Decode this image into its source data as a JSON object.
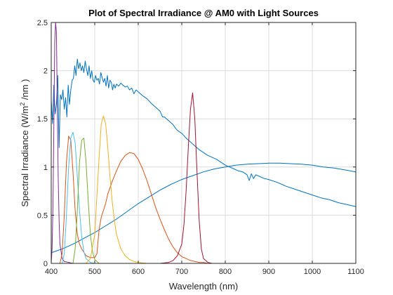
{
  "chart_data": {
    "type": "line",
    "title": "Plot of Spectral Irradiance @ AM0 with Light Sources",
    "xlabel": "Wavelength (nm)",
    "ylabel_main": "Spectral Irradiance (W/m",
    "ylabel_sup": "2",
    "ylabel_end": " /nm )",
    "xlim": [
      400,
      1100
    ],
    "ylim": [
      0,
      2.5
    ],
    "xticks": [
      400,
      500,
      600,
      700,
      800,
      900,
      1000,
      1100
    ],
    "yticks": [
      0,
      0.5,
      1,
      1.5,
      2,
      2.5
    ],
    "grid": true,
    "legend": "none",
    "series": [
      {
        "color": "#0072bd",
        "x": [
          400,
          403,
          406,
          409,
          412,
          415,
          418,
          421,
          424,
          427,
          430,
          433,
          436,
          439,
          442,
          445,
          448,
          451,
          454,
          457,
          460,
          463,
          466,
          469,
          472,
          475,
          478,
          481,
          484,
          487,
          490,
          493,
          496,
          499,
          502,
          505,
          508,
          511,
          514,
          517,
          520,
          523,
          526,
          529,
          532,
          535,
          538,
          541,
          544,
          547,
          550,
          555,
          560,
          565,
          570,
          575,
          580,
          585,
          590,
          595,
          600,
          610,
          620,
          630,
          640,
          650,
          656,
          660,
          670,
          680,
          686,
          690,
          700,
          710,
          720,
          730,
          740,
          750,
          760,
          770,
          780,
          790,
          800,
          810,
          820,
          830,
          840,
          850,
          855,
          860,
          865,
          870,
          880,
          890,
          900,
          920,
          940,
          960,
          980,
          1000,
          1020,
          1040,
          1060,
          1080,
          1100
        ],
        "y": [
          1.7,
          1.45,
          1.85,
          1.55,
          1.65,
          1.95,
          1.2,
          1.75,
          1.7,
          1.8,
          1.6,
          1.72,
          1.52,
          1.85,
          1.65,
          1.8,
          1.9,
          1.92,
          2.05,
          1.95,
          2.12,
          2.02,
          2.08,
          2.0,
          2.05,
          1.98,
          2.1,
          2.02,
          1.95,
          2.05,
          1.92,
          2.0,
          1.9,
          1.88,
          1.95,
          1.9,
          1.92,
          1.86,
          1.98,
          1.93,
          1.88,
          1.92,
          1.84,
          1.95,
          1.82,
          1.9,
          1.88,
          1.8,
          1.86,
          1.82,
          1.86,
          1.84,
          1.87,
          1.85,
          1.83,
          1.84,
          1.8,
          1.82,
          1.76,
          1.8,
          1.78,
          1.74,
          1.71,
          1.66,
          1.62,
          1.58,
          1.52,
          1.52,
          1.48,
          1.44,
          1.4,
          1.38,
          1.35,
          1.3,
          1.26,
          1.22,
          1.18,
          1.15,
          1.12,
          1.1,
          1.08,
          1.05,
          1.02,
          1.0,
          0.98,
          0.96,
          0.95,
          0.92,
          0.86,
          0.93,
          0.88,
          0.92,
          0.9,
          0.88,
          0.87,
          0.84,
          0.8,
          0.77,
          0.74,
          0.71,
          0.68,
          0.66,
          0.63,
          0.61,
          0.59
        ]
      },
      {
        "color": "#0072bd",
        "x": [
          400,
          425,
          450,
          475,
          500,
          525,
          550,
          575,
          600,
          625,
          650,
          675,
          700,
          725,
          750,
          775,
          800,
          825,
          850,
          875,
          900,
          925,
          950,
          975,
          1000,
          1025,
          1050,
          1075,
          1100
        ],
        "y": [
          0.11,
          0.15,
          0.2,
          0.26,
          0.32,
          0.39,
          0.46,
          0.54,
          0.62,
          0.69,
          0.76,
          0.82,
          0.87,
          0.91,
          0.95,
          0.98,
          1.0,
          1.02,
          1.03,
          1.035,
          1.04,
          1.04,
          1.035,
          1.03,
          1.02,
          1.0,
          0.99,
          0.97,
          0.95
        ]
      },
      {
        "color": "#7e2f8e",
        "x": [
          400,
          402,
          404,
          406,
          408,
          410,
          412,
          414,
          416,
          418,
          420,
          425,
          430,
          440,
          450
        ],
        "y": [
          0.0,
          0.15,
          0.6,
          1.4,
          2.3,
          2.6,
          2.4,
          1.6,
          0.9,
          0.45,
          0.2,
          0.05,
          0.02,
          0.01,
          0.0
        ]
      },
      {
        "color": "#d95319",
        "x": [
          420,
          425,
          430,
          435,
          440,
          445,
          450,
          455,
          460,
          465,
          470,
          480,
          490,
          500,
          505,
          510,
          515,
          520,
          525,
          530,
          540,
          550,
          560,
          570,
          580,
          590,
          600,
          610,
          620,
          630,
          640,
          650,
          660,
          670,
          680,
          690,
          700,
          710,
          720,
          730,
          740,
          750,
          760,
          770,
          780
        ],
        "y": [
          0.0,
          0.1,
          0.5,
          1.05,
          1.32,
          1.28,
          0.95,
          0.55,
          0.3,
          0.2,
          0.15,
          0.08,
          0.06,
          0.06,
          0.1,
          0.35,
          0.48,
          0.55,
          0.62,
          0.72,
          0.85,
          0.96,
          1.06,
          1.12,
          1.15,
          1.14,
          1.08,
          0.98,
          0.86,
          0.72,
          0.58,
          0.46,
          0.35,
          0.25,
          0.17,
          0.11,
          0.07,
          0.05,
          0.03,
          0.02,
          0.01,
          0.01,
          0.0,
          0.0,
          0.0
        ]
      },
      {
        "color": "#4dbeee",
        "x": [
          425,
          430,
          435,
          440,
          445,
          450,
          455,
          460,
          465,
          470,
          475,
          480,
          490,
          500
        ],
        "y": [
          0.0,
          0.1,
          0.5,
          1.0,
          1.3,
          1.36,
          1.25,
          0.9,
          0.55,
          0.28,
          0.12,
          0.05,
          0.01,
          0.0
        ]
      },
      {
        "color": "#77ac30",
        "x": [
          450,
          455,
          460,
          465,
          470,
          475,
          480,
          485,
          490,
          495,
          500,
          510
        ],
        "y": [
          0.0,
          0.15,
          0.55,
          1.05,
          1.28,
          1.3,
          1.05,
          0.65,
          0.3,
          0.12,
          0.04,
          0.0
        ]
      },
      {
        "color": "#edb120",
        "x": [
          480,
          490,
          500,
          505,
          510,
          515,
          520,
          525,
          530,
          535,
          540,
          545,
          550,
          560,
          570,
          580,
          590,
          600,
          620,
          640,
          660,
          680,
          700
        ],
        "y": [
          0.0,
          0.05,
          0.3,
          0.7,
          1.1,
          1.45,
          1.53,
          1.45,
          1.2,
          0.9,
          0.65,
          0.45,
          0.3,
          0.15,
          0.08,
          0.04,
          0.02,
          0.01,
          0.0,
          0.0,
          0.0,
          0.0,
          0.0
        ]
      },
      {
        "color": "#a2142f",
        "x": [
          650,
          670,
          680,
          690,
          700,
          705,
          710,
          715,
          720,
          725,
          730,
          735,
          740,
          745,
          750,
          760,
          770,
          790
        ],
        "y": [
          0.0,
          0.01,
          0.03,
          0.08,
          0.2,
          0.4,
          0.75,
          1.2,
          1.6,
          1.77,
          1.5,
          0.95,
          0.45,
          0.15,
          0.05,
          0.01,
          0.0,
          0.0
        ]
      }
    ]
  }
}
